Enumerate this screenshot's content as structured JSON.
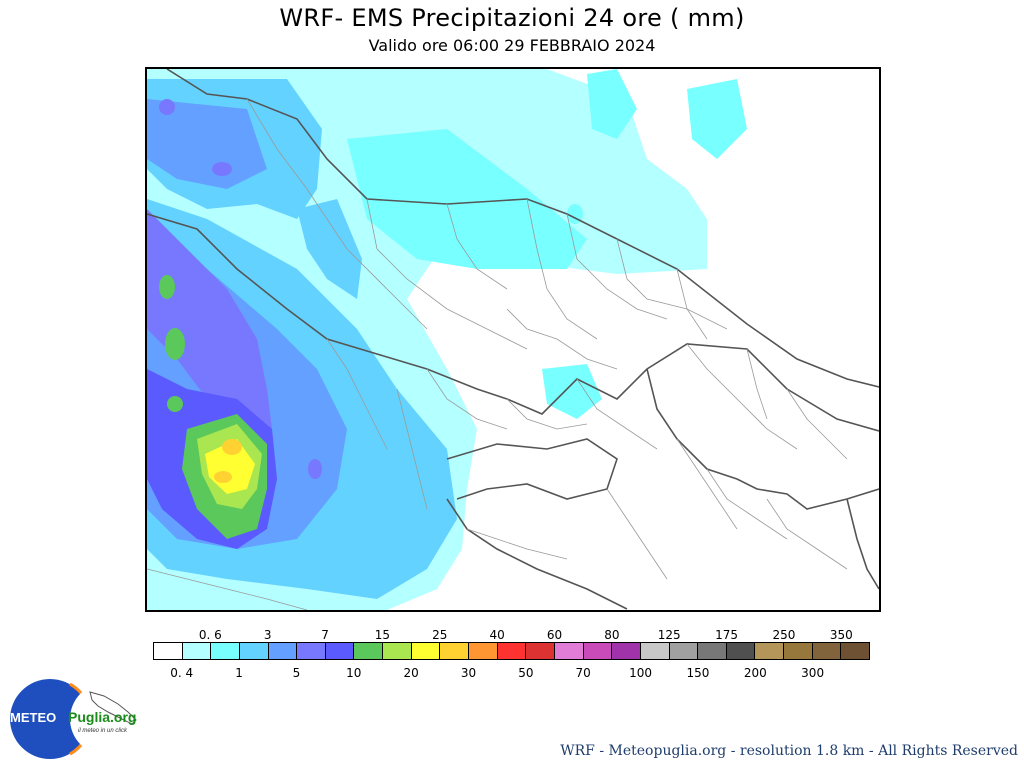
{
  "header": {
    "title": "WRF- EMS Precipitazioni 24 ore ( mm)",
    "subtitle": "Valido ore 06:00 29 FEBBRAIO 2024"
  },
  "legend": {
    "colors": [
      "#ffffff",
      "#b4ffff",
      "#78ffff",
      "#64d2ff",
      "#64a0ff",
      "#7878ff",
      "#5a5aff",
      "#5ac85a",
      "#aae650",
      "#ffff32",
      "#ffd232",
      "#ff9632",
      "#ff3232",
      "#dc3232",
      "#e17dd7",
      "#c84bb9",
      "#a032aa",
      "#c8c8c8",
      "#a0a0a0",
      "#787878",
      "#505050",
      "#b4965a",
      "#96783c",
      "#82643c",
      "#6e5032"
    ],
    "top_labels": [
      "0. 6",
      "3",
      "7",
      "15",
      "25",
      "40",
      "60",
      "80",
      "125",
      "175",
      "250",
      "350"
    ],
    "bottom_labels": [
      "0. 4",
      "1",
      "5",
      "10",
      "20",
      "30",
      "50",
      "70",
      "100",
      "150",
      "200",
      "300"
    ]
  },
  "logo": {
    "word1": "METEO",
    "word2": "Puglia.org",
    "tagline": "il meteo in un click"
  },
  "footer": {
    "credit": "WRF - Meteopuglia.org - resolution 1.8 km - All Rights Reserved"
  }
}
